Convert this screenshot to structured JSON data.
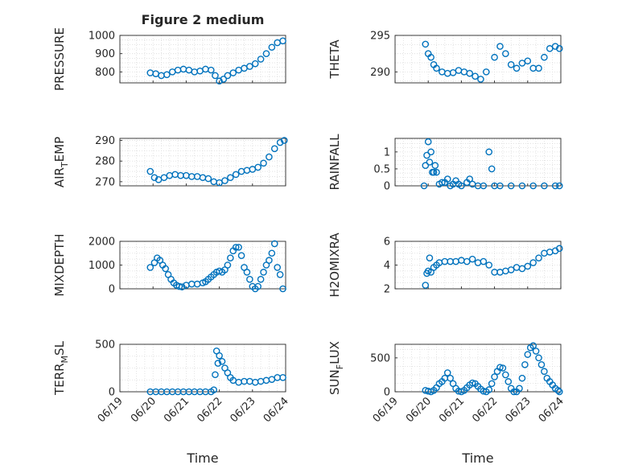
{
  "figure": {
    "title": "Figure 2 medium",
    "xlabel": "Time"
  },
  "chart_data": [
    {
      "type": "scatter",
      "ylabel": "PRESSURE",
      "ylabel_sub": "",
      "xlim": [
        "06/19",
        "06/24"
      ],
      "ylim": [
        740,
        1000
      ],
      "yticks": [
        800,
        900,
        1000
      ],
      "xtick_labels": [],
      "grid": true,
      "series": [
        {
          "x": [
            "06/19 22:00",
            "06/20 02:00",
            "06/20 06:00",
            "06/20 10:00",
            "06/20 14:00",
            "06/20 18:00",
            "06/20 22:00",
            "06/21 02:00",
            "06/21 06:00",
            "06/21 10:00",
            "06/21 14:00",
            "06/21 18:00",
            "06/21 21:00",
            "06/22 00:00",
            "06/22 03:00",
            "06/22 06:00",
            "06/22 10:00",
            "06/22 14:00",
            "06/22 18:00",
            "06/22 22:00",
            "06/23 02:00",
            "06/23 06:00",
            "06/23 10:00",
            "06/23 14:00",
            "06/23 18:00",
            "06/23 22:00"
          ],
          "y": [
            795,
            790,
            780,
            785,
            800,
            810,
            815,
            810,
            800,
            805,
            815,
            810,
            780,
            750,
            760,
            780,
            795,
            810,
            820,
            830,
            845,
            870,
            900,
            935,
            960,
            970
          ]
        }
      ]
    },
    {
      "type": "scatter",
      "ylabel": "THETA",
      "ylabel_sub": "",
      "xlim": [
        "06/19",
        "06/24"
      ],
      "ylim": [
        288.5,
        295
      ],
      "yticks": [
        290,
        295
      ],
      "xtick_labels": [],
      "grid": true,
      "series": [
        {
          "x": [
            "06/19 22:00",
            "06/20 00:00",
            "06/20 02:00",
            "06/20 04:00",
            "06/20 06:00",
            "06/20 10:00",
            "06/20 14:00",
            "06/20 18:00",
            "06/20 22:00",
            "06/21 02:00",
            "06/21 06:00",
            "06/21 10:00",
            "06/21 14:00",
            "06/21 18:00",
            "06/22 00:00",
            "06/22 04:00",
            "06/22 08:00",
            "06/22 12:00",
            "06/22 16:00",
            "06/22 20:00",
            "06/23 00:00",
            "06/23 04:00",
            "06/23 08:00",
            "06/23 12:00",
            "06/23 16:00",
            "06/23 20:00",
            "06/23 23:00"
          ],
          "y": [
            293.8,
            292.5,
            292,
            291,
            290.5,
            290,
            289.8,
            289.9,
            290.2,
            290,
            289.8,
            289.4,
            289,
            290,
            292,
            293.5,
            292.5,
            291,
            290.5,
            291.2,
            291.5,
            290.5,
            290.5,
            292,
            293.2,
            293.5,
            293.2
          ]
        }
      ]
    },
    {
      "type": "scatter",
      "ylabel": "AIR",
      "ylabel_sub": "T",
      "ylabel_tail": "EMP",
      "xlim": [
        "06/19",
        "06/24"
      ],
      "ylim": [
        268,
        291
      ],
      "yticks": [
        270,
        280,
        290
      ],
      "xtick_labels": [],
      "grid": true,
      "series": [
        {
          "x": [
            "06/19 22:00",
            "06/20 01:00",
            "06/20 04:00",
            "06/20 08:00",
            "06/20 12:00",
            "06/20 16:00",
            "06/20 20:00",
            "06/21 00:00",
            "06/21 04:00",
            "06/21 08:00",
            "06/21 12:00",
            "06/21 16:00",
            "06/21 20:00",
            "06/22 00:00",
            "06/22 04:00",
            "06/22 08:00",
            "06/22 12:00",
            "06/22 16:00",
            "06/22 20:00",
            "06/23 00:00",
            "06/23 04:00",
            "06/23 08:00",
            "06/23 12:00",
            "06/23 16:00",
            "06/23 20:00",
            "06/23 23:00"
          ],
          "y": [
            275,
            272,
            271,
            272,
            273,
            273.5,
            273,
            273,
            272.5,
            272.5,
            272,
            271.5,
            270,
            269.5,
            270.5,
            272,
            273.5,
            275,
            275.5,
            276,
            277,
            279,
            282,
            286,
            289,
            290
          ]
        }
      ]
    },
    {
      "type": "scatter",
      "ylabel": "RAINFALL",
      "ylabel_sub": "",
      "xlim": [
        "06/19",
        "06/24"
      ],
      "ylim": [
        0,
        1.4
      ],
      "yticks": [
        0,
        0.5,
        1
      ],
      "xtick_labels": [],
      "grid": true,
      "series": [
        {
          "x": [
            "06/19 21:00",
            "06/19 22:00",
            "06/19 23:00",
            "06/20 00:00",
            "06/20 01:00",
            "06/20 02:00",
            "06/20 03:00",
            "06/20 04:00",
            "06/20 05:00",
            "06/20 06:00",
            "06/20 08:00",
            "06/20 10:00",
            "06/20 12:00",
            "06/20 14:00",
            "06/20 16:00",
            "06/20 18:00",
            "06/20 20:00",
            "06/20 22:00",
            "06/21 00:00",
            "06/21 04:00",
            "06/21 06:00",
            "06/21 08:00",
            "06/21 12:00",
            "06/21 16:00",
            "06/21 20:00",
            "06/21 22:00",
            "06/22 00:00",
            "06/22 04:00",
            "06/22 12:00",
            "06/22 20:00",
            "06/23 04:00",
            "06/23 12:00",
            "06/23 20:00",
            "06/23 23:00"
          ],
          "y": [
            0,
            0.6,
            0.9,
            1.3,
            0.7,
            1.0,
            0.4,
            0.4,
            0.6,
            0.4,
            0.05,
            0.1,
            0.1,
            0.2,
            0.0,
            0.05,
            0.15,
            0.05,
            0.0,
            0.1,
            0.2,
            0.05,
            0.0,
            0.0,
            1.0,
            0.5,
            0.0,
            0.0,
            0.0,
            0.0,
            0.0,
            0.0,
            0.0,
            0.0
          ]
        }
      ]
    },
    {
      "type": "scatter",
      "ylabel": "MIXDEPTH",
      "ylabel_sub": "",
      "xlim": [
        "06/19",
        "06/24"
      ],
      "ylim": [
        0,
        2000
      ],
      "yticks": [
        0,
        1000,
        2000
      ],
      "xtick_labels": [],
      "grid": true,
      "series": [
        {
          "x": [
            "06/19 22:00",
            "06/20 01:00",
            "06/20 03:00",
            "06/20 05:00",
            "06/20 07:00",
            "06/20 09:00",
            "06/20 11:00",
            "06/20 13:00",
            "06/20 15:00",
            "06/20 17:00",
            "06/20 19:00",
            "06/20 21:00",
            "06/21 00:00",
            "06/21 04:00",
            "06/21 08:00",
            "06/21 12:00",
            "06/21 14:00",
            "06/21 16:00",
            "06/21 18:00",
            "06/21 20:00",
            "06/21 22:00",
            "06/22 00:00",
            "06/22 02:00",
            "06/22 04:00",
            "06/22 06:00",
            "06/22 08:00",
            "06/22 10:00",
            "06/22 12:00",
            "06/22 14:00",
            "06/22 16:00",
            "06/22 18:00",
            "06/22 20:00",
            "06/22 22:00",
            "06/23 00:00",
            "06/23 02:00",
            "06/23 04:00",
            "06/23 06:00",
            "06/23 08:00",
            "06/23 10:00",
            "06/23 12:00",
            "06/23 14:00",
            "06/23 16:00",
            "06/23 18:00",
            "06/23 20:00",
            "06/23 22:00"
          ],
          "y": [
            900,
            1100,
            1300,
            1200,
            1000,
            850,
            600,
            400,
            250,
            150,
            100,
            80,
            150,
            200,
            200,
            250,
            300,
            400,
            500,
            600,
            700,
            750,
            700,
            800,
            1000,
            1300,
            1600,
            1750,
            1750,
            1400,
            900,
            700,
            400,
            100,
            0,
            100,
            400,
            700,
            1000,
            1200,
            1500,
            1900,
            900,
            600,
            0
          ]
        }
      ]
    },
    {
      "type": "scatter",
      "ylabel": "H2OMIXRA",
      "ylabel_sub": "",
      "xlim": [
        "06/19",
        "06/24"
      ],
      "ylim": [
        2,
        6
      ],
      "yticks": [
        2,
        4,
        6
      ],
      "xtick_labels": [],
      "grid": true,
      "series": [
        {
          "x": [
            "06/19 22:00",
            "06/19 23:00",
            "06/20 00:00",
            "06/20 01:00",
            "06/20 02:00",
            "06/20 04:00",
            "06/20 06:00",
            "06/20 08:00",
            "06/20 12:00",
            "06/20 16:00",
            "06/20 20:00",
            "06/21 00:00",
            "06/21 04:00",
            "06/21 08:00",
            "06/21 12:00",
            "06/21 16:00",
            "06/21 20:00",
            "06/22 00:00",
            "06/22 04:00",
            "06/22 08:00",
            "06/22 12:00",
            "06/22 16:00",
            "06/22 20:00",
            "06/23 00:00",
            "06/23 04:00",
            "06/23 08:00",
            "06/23 12:00",
            "06/23 16:00",
            "06/23 20:00",
            "06/23 23:00"
          ],
          "y": [
            2.3,
            3.3,
            3.5,
            4.6,
            3.4,
            3.8,
            4.0,
            4.2,
            4.3,
            4.3,
            4.3,
            4.4,
            4.3,
            4.5,
            4.2,
            4.3,
            4.0,
            3.4,
            3.4,
            3.5,
            3.6,
            3.8,
            3.7,
            3.9,
            4.2,
            4.6,
            5.0,
            5.1,
            5.2,
            5.4
          ]
        }
      ]
    },
    {
      "type": "scatter",
      "ylabel": "TERR",
      "ylabel_sub": "M",
      "ylabel_tail": "SL",
      "xlim": [
        "06/19",
        "06/24"
      ],
      "ylim": [
        0,
        500
      ],
      "yticks": [
        0,
        500
      ],
      "xtick_labels": [
        "06/19",
        "06/20",
        "06/21",
        "06/22",
        "06/23",
        "06/24"
      ],
      "grid": true,
      "series": [
        {
          "x": [
            "06/19 22:00",
            "06/20 02:00",
            "06/20 06:00",
            "06/20 10:00",
            "06/20 14:00",
            "06/20 18:00",
            "06/20 22:00",
            "06/21 02:00",
            "06/21 06:00",
            "06/21 10:00",
            "06/21 14:00",
            "06/21 18:00",
            "06/21 20:00",
            "06/21 21:00",
            "06/21 22:00",
            "06/21 23:00",
            "06/22 00:00",
            "06/22 02:00",
            "06/22 04:00",
            "06/22 06:00",
            "06/22 08:00",
            "06/22 10:00",
            "06/22 14:00",
            "06/22 18:00",
            "06/22 22:00",
            "06/23 02:00",
            "06/23 06:00",
            "06/23 10:00",
            "06/23 14:00",
            "06/23 18:00",
            "06/23 22:00"
          ],
          "y": [
            0,
            0,
            0,
            0,
            0,
            0,
            0,
            0,
            0,
            0,
            0,
            0,
            20,
            180,
            430,
            300,
            380,
            320,
            250,
            200,
            150,
            120,
            100,
            110,
            110,
            100,
            110,
            120,
            130,
            150,
            150
          ]
        }
      ]
    },
    {
      "type": "scatter",
      "ylabel": "SUN",
      "ylabel_sub": "F",
      "ylabel_tail": "LUX",
      "xlim": [
        "06/19",
        "06/24"
      ],
      "ylim": [
        0,
        700
      ],
      "yticks": [
        0,
        500
      ],
      "xtick_labels": [
        "06/19",
        "06/20",
        "06/21",
        "06/22",
        "06/23",
        "06/24"
      ],
      "grid": true,
      "series": [
        {
          "x": [
            "06/19 22:00",
            "06/20 00:00",
            "06/20 02:00",
            "06/20 04:00",
            "06/20 06:00",
            "06/20 08:00",
            "06/20 10:00",
            "06/20 12:00",
            "06/20 14:00",
            "06/20 16:00",
            "06/20 18:00",
            "06/20 20:00",
            "06/20 22:00",
            "06/21 00:00",
            "06/21 02:00",
            "06/21 04:00",
            "06/21 06:00",
            "06/21 08:00",
            "06/21 10:00",
            "06/21 12:00",
            "06/21 14:00",
            "06/21 16:00",
            "06/21 18:00",
            "06/21 20:00",
            "06/21 22:00",
            "06/22 00:00",
            "06/22 02:00",
            "06/22 04:00",
            "06/22 06:00",
            "06/22 08:00",
            "06/22 10:00",
            "06/22 12:00",
            "06/22 14:00",
            "06/22 16:00",
            "06/22 18:00",
            "06/22 20:00",
            "06/22 22:00",
            "06/23 00:00",
            "06/23 02:00",
            "06/23 04:00",
            "06/23 06:00",
            "06/23 08:00",
            "06/23 10:00",
            "06/23 12:00",
            "06/23 14:00",
            "06/23 16:00",
            "06/23 18:00",
            "06/23 20:00",
            "06/23 22:00",
            "06/23 23:00"
          ],
          "y": [
            20,
            10,
            0,
            20,
            60,
            120,
            150,
            200,
            280,
            200,
            120,
            50,
            10,
            0,
            20,
            60,
            100,
            130,
            120,
            80,
            40,
            10,
            0,
            30,
            120,
            220,
            300,
            360,
            350,
            250,
            150,
            50,
            0,
            0,
            50,
            200,
            400,
            550,
            650,
            680,
            600,
            500,
            400,
            300,
            200,
            150,
            100,
            50,
            20,
            0
          ]
        }
      ]
    }
  ]
}
